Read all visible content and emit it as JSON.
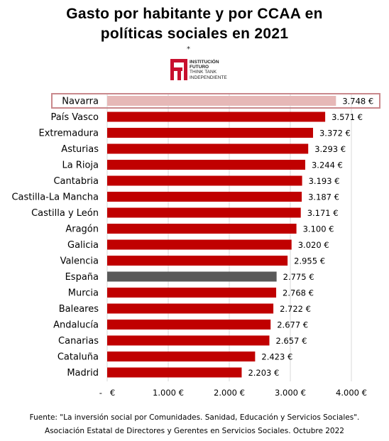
{
  "title": {
    "line1": "Gasto por habitante y por CCAA en",
    "line2": "políticas sociales en 2021"
  },
  "logo": {
    "star": "*",
    "line1": "INSTITUCIÓN",
    "line2": "FUTURO",
    "line3": "THINK TANK",
    "line4": "INDEPENDIENTE",
    "color": "#c8102e"
  },
  "colors": {
    "bar": "#c00000",
    "highlight_bar": "#e6b8b7",
    "highlight_border": "#c9888c",
    "national_bar": "#595959"
  },
  "chart_data": {
    "type": "bar",
    "orientation": "horizontal",
    "categories": [
      "Navarra",
      "País Vasco",
      "Extremadura",
      "Asturias",
      "La Rioja",
      "Cantabria",
      "Castilla-La Mancha",
      "Castilla y León",
      "Aragón",
      "Galicia",
      "Valencia",
      "España",
      "Murcia",
      "Baleares",
      "Andalucía",
      "Canarias",
      "Cataluña",
      "Madrid"
    ],
    "values": [
      3748,
      3571,
      3372,
      3293,
      3244,
      3193,
      3187,
      3171,
      3100,
      3020,
      2955,
      2775,
      2768,
      2722,
      2677,
      2657,
      2423,
      2203
    ],
    "value_labels": [
      "3.748 €",
      "3.571 €",
      "3.372 €",
      "3.293 €",
      "3.244 €",
      "3.193 €",
      "3.187 €",
      "3.171 €",
      "3.100 €",
      "3.020 €",
      "2.955 €",
      "2.775 €",
      "2.768 €",
      "2.722 €",
      "2.677 €",
      "2.657 €",
      "2.423 €",
      "2.203 €"
    ],
    "highlight": "Navarra",
    "national": "España",
    "xlim": [
      0,
      4000
    ],
    "xticks": [
      0,
      1000,
      2000,
      3000,
      4000
    ],
    "xtick_labels": [
      "-   €",
      "1.000 €",
      "2.000 €",
      "3.000 €",
      "4.000 €"
    ],
    "grid": true,
    "legend": "none"
  },
  "source": {
    "line1": "Fuente: \"La inversión social por Comunidades. Sanidad, Educación y Servicios Sociales\".",
    "line2": "Asociación Estatal de Directores y Gerentes en Servicios Sociales. Octubre 2022"
  }
}
